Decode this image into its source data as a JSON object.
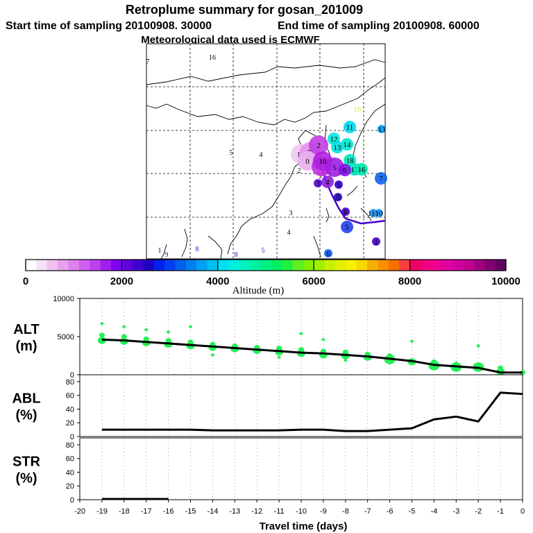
{
  "header": {
    "title": "Retroplume summary for gosan_201009",
    "start_label": "Start time of sampling 20100908. 30000",
    "end_label": "End time of sampling 20100908. 60000",
    "met_label": "Meteorological data used is ECMWF"
  },
  "map": {
    "markers": [
      {
        "label": "16",
        "color": "#f5f500",
        "size": 0
      },
      {
        "label": "7",
        "color": "#f5f500",
        "size": 0
      },
      {
        "label": "10",
        "color": "#c8f000",
        "size": 0
      },
      {
        "label": "11",
        "color": "#00d8f0",
        "size": 2
      },
      {
        "label": "13",
        "color": "#00a0f0",
        "size": 1
      },
      {
        "label": "12",
        "color": "#00e8e0",
        "size": 2
      },
      {
        "label": "14",
        "color": "#00e8d0",
        "size": 2
      },
      {
        "label": "13",
        "color": "#00e0e0",
        "size": 2
      },
      {
        "label": "18",
        "color": "#00e8c0",
        "size": 2
      },
      {
        "label": "17",
        "color": "#00e8c0",
        "size": 2
      },
      {
        "label": "16",
        "color": "#00e8b0",
        "size": 2
      },
      {
        "label": "5",
        "color": "#000000",
        "size": 0
      },
      {
        "label": "4",
        "color": "#000000",
        "size": 0
      },
      {
        "label": "11",
        "color": "#f0c8f0",
        "size": 3
      },
      {
        "label": "7",
        "color": "#e890f0",
        "size": 3
      },
      {
        "label": "0",
        "color": "#e8b0f0",
        "size": 3
      },
      {
        "label": "2",
        "color": "#c040e0",
        "size": 3
      },
      {
        "label": "1",
        "color": "#c030e0",
        "size": 3
      },
      {
        "label": "2",
        "color": "#000000",
        "size": 0
      },
      {
        "label": "10",
        "color": "#b020e0",
        "size": 3
      },
      {
        "label": "5",
        "color": "#a020e0",
        "size": 3
      },
      {
        "label": "6",
        "color": "#8010e8",
        "size": 2
      },
      {
        "label": "4",
        "color": "#9020e0",
        "size": 2
      },
      {
        "label": "7",
        "color": "#1060f0",
        "size": 2
      },
      {
        "label": "3",
        "color": "#6000e0",
        "size": 1
      },
      {
        "label": "5",
        "color": "#3000d0",
        "size": 1
      },
      {
        "label": "5",
        "color": "#2000c0",
        "size": 1
      },
      {
        "label": "6",
        "color": "#4000c8",
        "size": 1
      },
      {
        "label": "5",
        "color": "#2040f0",
        "size": 2
      },
      {
        "label": "110",
        "color": "#2090f0",
        "size": 1
      },
      {
        "label": "10",
        "color": "#2090f0",
        "size": 1
      },
      {
        "label": "3",
        "color": "#000000",
        "size": 0
      },
      {
        "label": "4",
        "color": "#000000",
        "size": 0
      },
      {
        "label": "6",
        "color": "#1060f0",
        "size": 1
      },
      {
        "label": "9",
        "color": "#4000c8",
        "size": 0
      },
      {
        "label": "8",
        "color": "#4000c8",
        "size": 0
      },
      {
        "label": "8",
        "color": "#4000c8",
        "size": 0
      },
      {
        "label": "5",
        "color": "#4000c8",
        "size": 0
      },
      {
        "label": "1",
        "color": "#000000",
        "size": 0
      },
      {
        "label": "1",
        "color": "#4000c8",
        "size": 1
      }
    ],
    "colorbar": {
      "ticks": [
        "0",
        "2000",
        "4000",
        "6000",
        "8000",
        "10000"
      ],
      "label": "Altitude (m)",
      "colors": [
        "#ffffff",
        "#f8e0f8",
        "#f0c0f0",
        "#e8a0f0",
        "#e080f0",
        "#d060f0",
        "#c040f0",
        "#a020f0",
        "#8000f0",
        "#6000e0",
        "#4000d0",
        "#2000c0",
        "#0020f0",
        "#0040f0",
        "#0060f0",
        "#0080f0",
        "#00a0f0",
        "#00c0f0",
        "#00e0f0",
        "#00f0e0",
        "#00f0c0",
        "#00f0a0",
        "#00f080",
        "#00f060",
        "#20f040",
        "#60f020",
        "#80f000",
        "#a0f000",
        "#c8f000",
        "#e0f000",
        "#f8f000",
        "#f8d800",
        "#f8b000",
        "#f89000",
        "#f87000",
        "#f84040",
        "#f00060",
        "#f00080",
        "#f00090",
        "#e000a0",
        "#d000a0",
        "#c00090",
        "#a00080",
        "#800070",
        "#600060"
      ]
    }
  },
  "chart_data": [
    {
      "type": "line",
      "panel": "ALT",
      "ylabel": "ALT",
      "yunit": "(m)",
      "ylim": [
        0,
        10000
      ],
      "yticks": [
        "0",
        "5000",
        "10000"
      ],
      "xlim": [
        -20,
        0
      ],
      "x": [
        -19,
        -18,
        -17,
        -16,
        -15,
        -14,
        -13,
        -12,
        -11,
        -10,
        -9,
        -8,
        -7,
        -6,
        -5,
        -4,
        -3,
        -2,
        -1,
        0
      ],
      "values": [
        4600,
        4500,
        4300,
        4100,
        3900,
        3700,
        3500,
        3300,
        3100,
        2900,
        2800,
        2600,
        2400,
        2100,
        1800,
        1300,
        1100,
        900,
        300,
        300
      ],
      "clusters": [
        {
          "x": -19,
          "y": 4500,
          "s": 3
        },
        {
          "x": -19,
          "y": 5200,
          "s": 2
        },
        {
          "x": -19,
          "y": 6700,
          "s": 1
        },
        {
          "x": -18,
          "y": 4400,
          "s": 3
        },
        {
          "x": -18,
          "y": 5000,
          "s": 2
        },
        {
          "x": -18,
          "y": 6300,
          "s": 1
        },
        {
          "x": -17,
          "y": 4200,
          "s": 3
        },
        {
          "x": -17,
          "y": 4700,
          "s": 2
        },
        {
          "x": -17,
          "y": 5900,
          "s": 1
        },
        {
          "x": -16,
          "y": 4000,
          "s": 3
        },
        {
          "x": -16,
          "y": 4500,
          "s": 2
        },
        {
          "x": -16,
          "y": 5600,
          "s": 1
        },
        {
          "x": -15,
          "y": 3800,
          "s": 3
        },
        {
          "x": -15,
          "y": 4300,
          "s": 2
        },
        {
          "x": -15,
          "y": 6300,
          "s": 1
        },
        {
          "x": -14,
          "y": 3600,
          "s": 3
        },
        {
          "x": -14,
          "y": 4000,
          "s": 2
        },
        {
          "x": -14,
          "y": 2600,
          "s": 1
        },
        {
          "x": -13,
          "y": 3400,
          "s": 3
        },
        {
          "x": -13,
          "y": 3800,
          "s": 2
        },
        {
          "x": -12,
          "y": 3200,
          "s": 3
        },
        {
          "x": -12,
          "y": 3600,
          "s": 2
        },
        {
          "x": -11,
          "y": 3000,
          "s": 3
        },
        {
          "x": -11,
          "y": 3500,
          "s": 2
        },
        {
          "x": -11,
          "y": 2300,
          "s": 1
        },
        {
          "x": -10,
          "y": 2800,
          "s": 3
        },
        {
          "x": -10,
          "y": 3300,
          "s": 2
        },
        {
          "x": -10,
          "y": 5400,
          "s": 1
        },
        {
          "x": -9,
          "y": 2600,
          "s": 3
        },
        {
          "x": -9,
          "y": 3100,
          "s": 2
        },
        {
          "x": -9,
          "y": 4600,
          "s": 1
        },
        {
          "x": -8,
          "y": 2500,
          "s": 3
        },
        {
          "x": -8,
          "y": 3000,
          "s": 2
        },
        {
          "x": -8,
          "y": 1900,
          "s": 1
        },
        {
          "x": -7,
          "y": 2300,
          "s": 3
        },
        {
          "x": -7,
          "y": 2700,
          "s": 2
        },
        {
          "x": -6,
          "y": 2000,
          "s": 4
        },
        {
          "x": -6,
          "y": 2500,
          "s": 2
        },
        {
          "x": -5,
          "y": 1700,
          "s": 3
        },
        {
          "x": -5,
          "y": 4400,
          "s": 1
        },
        {
          "x": -4,
          "y": 1200,
          "s": 4
        },
        {
          "x": -4,
          "y": 1700,
          "s": 2
        },
        {
          "x": -3,
          "y": 1000,
          "s": 4
        },
        {
          "x": -3,
          "y": 1400,
          "s": 2
        },
        {
          "x": -2,
          "y": 1000,
          "s": 4
        },
        {
          "x": -2,
          "y": 1300,
          "s": 2
        },
        {
          "x": -2,
          "y": 3800,
          "s": 1
        },
        {
          "x": -1,
          "y": 400,
          "s": 3
        },
        {
          "x": -1,
          "y": 900,
          "s": 2
        },
        {
          "x": 0,
          "y": 300,
          "s": 2
        }
      ]
    },
    {
      "type": "line",
      "panel": "ABL",
      "ylabel": "ABL",
      "yunit": "(%)",
      "ylim": [
        0,
        90
      ],
      "yticks": [
        "0",
        "20",
        "40",
        "60",
        "80"
      ],
      "xlim": [
        -20,
        0
      ],
      "x": [
        -19,
        -18,
        -17,
        -16,
        -15,
        -14,
        -13,
        -12,
        -11,
        -10,
        -9,
        -8,
        -7,
        -6,
        -5,
        -4,
        -3,
        -2,
        -1,
        0
      ],
      "values": [
        10,
        10,
        10,
        10,
        10,
        9,
        9,
        9,
        9,
        10,
        10,
        8,
        8,
        10,
        12,
        25,
        29,
        22,
        64,
        62
      ]
    },
    {
      "type": "line",
      "panel": "STR",
      "ylabel": "STR",
      "yunit": "(%)",
      "ylim": [
        0,
        90
      ],
      "yticks": [
        "0",
        "20",
        "40",
        "60",
        "80"
      ],
      "xlim": [
        -20,
        0
      ],
      "x": [
        -19,
        -18,
        -17,
        -16
      ],
      "values": [
        1,
        1,
        1,
        1
      ],
      "xlabel": "Travel time (days)",
      "xticks": [
        "-20",
        "-19",
        "-18",
        "-17",
        "-16",
        "-15",
        "-14",
        "-13",
        "-12",
        "-11",
        "-10",
        "-9",
        "-8",
        "-7",
        "-6",
        "-5",
        "-4",
        "-3",
        "-2",
        "-1",
        "0"
      ]
    }
  ]
}
